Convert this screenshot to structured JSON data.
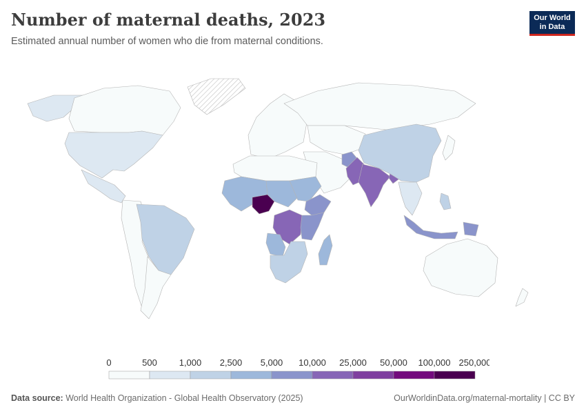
{
  "header": {
    "title": "Number of maternal deaths, 2023",
    "subtitle": "Estimated annual number of women who die from maternal conditions.",
    "logo_line1": "Our World",
    "logo_line2": "in Data"
  },
  "legend": {
    "ticks": [
      "0",
      "500",
      "1,000",
      "2,500",
      "5,000",
      "10,000",
      "25,000",
      "50,000",
      "100,000",
      "250,000"
    ],
    "colors": [
      "#f7fbfb",
      "#dde8f2",
      "#bfd2e6",
      "#9db8db",
      "#8a94cb",
      "#8766b6",
      "#7f3f9f",
      "#730b7d",
      "#4a0050"
    ]
  },
  "footer": {
    "source_label": "Data source:",
    "source_text": "World Health Organization - Global Health Observatory (2025)",
    "url": "OurWorldinData.org/maternal-mortality",
    "separator": " | ",
    "license": "CC BY"
  },
  "regions": {
    "north_america": 1,
    "canada": 0,
    "alaska": 1,
    "greenland": -1,
    "central_america": 1,
    "south_america_west": 0,
    "brazil": 2,
    "south_america_south": 0,
    "europe": 0,
    "russia": 0,
    "north_africa": 0,
    "west_africa": 3,
    "nigeria": 8,
    "central_africa": 3,
    "sudan": 3,
    "drc": 5,
    "ethiopia": 4,
    "east_africa": 4,
    "southern_africa": 2,
    "angola": 3,
    "madagascar": 3,
    "middle_east": 0,
    "central_asia": 0,
    "afghanistan": 4,
    "pakistan": 5,
    "india": 5,
    "bangladesh": 5,
    "china": 2,
    "southeast_asia": 1,
    "philippines": 2,
    "indonesia": 4,
    "png": 4,
    "japan": 0,
    "australia": 0,
    "new_zealand": 0
  }
}
